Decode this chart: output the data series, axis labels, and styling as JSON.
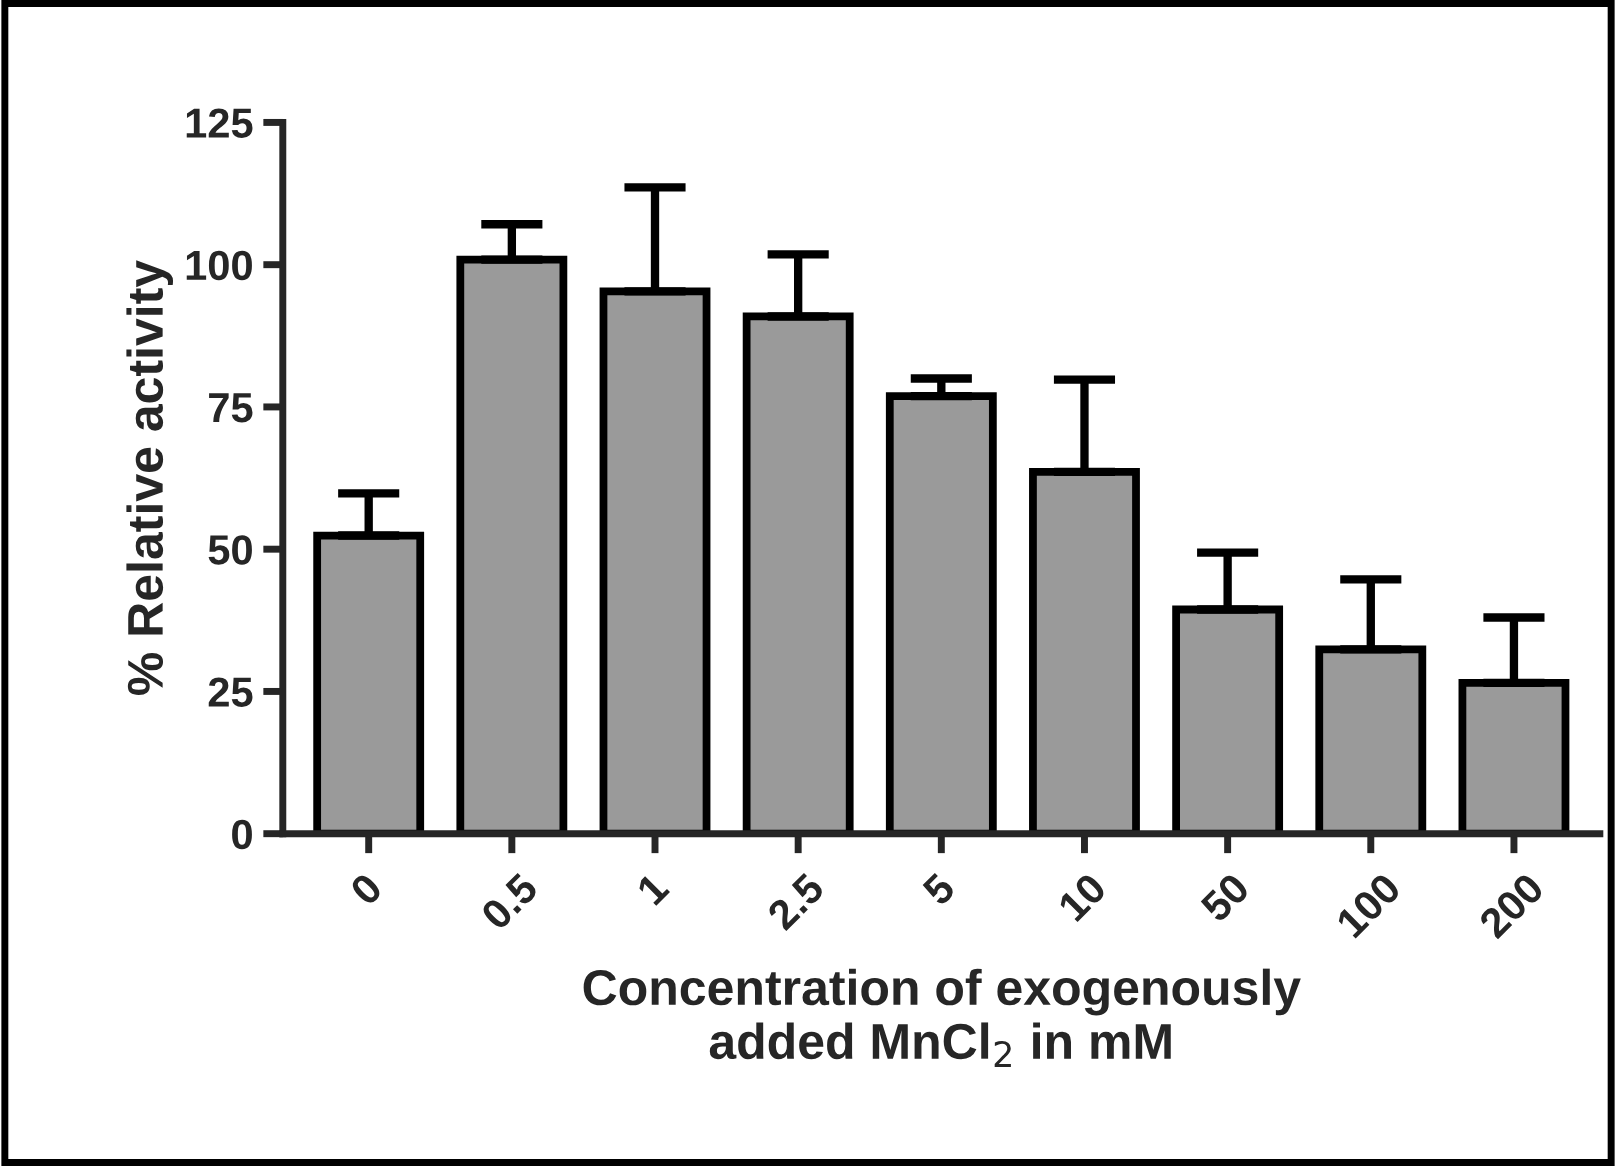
{
  "chart_data": {
    "type": "bar",
    "xlabel": "Concentration of exogenously\nadded MnCl$_{2}$ in mM",
    "ylabel": "% Relative activity",
    "categories": [
      "0",
      "0.5",
      "1",
      "2.5",
      "5",
      "10",
      "50",
      "100",
      "200"
    ],
    "values": [
      52.4,
      100.9,
      95.3,
      90.9,
      76.9,
      63.6,
      39.4,
      32.4,
      26.5
    ],
    "errors": [
      [
        52.4,
        59.8
      ],
      [
        100.9,
        107.1
      ],
      [
        95.3,
        113.6
      ],
      [
        90.9,
        101.8
      ],
      [
        76.9,
        80.0
      ],
      [
        63.6,
        79.8
      ],
      [
        39.4,
        49.4
      ],
      [
        32.4,
        44.7
      ],
      [
        26.5,
        38.0
      ]
    ],
    "color": "#9a9a9a",
    "ylim": [
      0,
      125
    ],
    "yticks": [
      0,
      25,
      50,
      75,
      100,
      125
    ],
    "grid": false,
    "legend": false
  }
}
